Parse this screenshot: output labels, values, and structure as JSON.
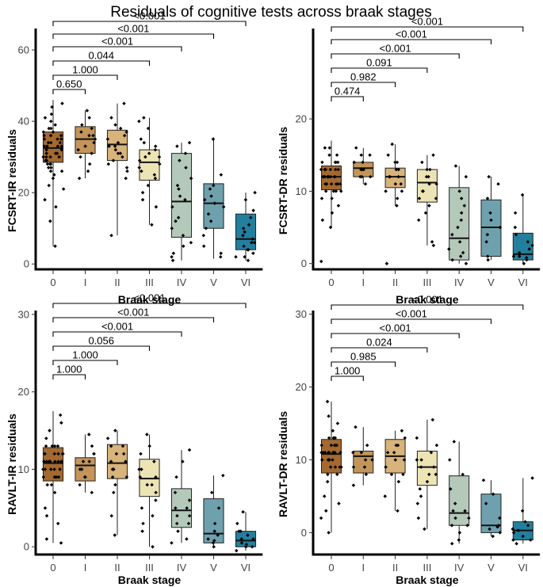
{
  "title": "Residuals of cognitive tests across braak stages",
  "colors": {
    "stage_fills": [
      "#a4692f",
      "#c3955a",
      "#d8b37a",
      "#ede4b5",
      "#b4c9ba",
      "#6ea1ad",
      "#237f9e"
    ],
    "point": "#000000",
    "axis": "#000000"
  },
  "chart_data": [
    {
      "type": "box",
      "id": "fcsrt-ir",
      "ylabel": "FCSRT-IR residuals",
      "xlabel": "Braak stage",
      "categories": [
        "0",
        "I",
        "II",
        "III",
        "IV",
        "V",
        "VI"
      ],
      "yticks": [
        0,
        20,
        40,
        60
      ],
      "ylim": [
        -1.5,
        66
      ],
      "boxes": [
        {
          "min": 5,
          "q1": 28.5,
          "median": 32.5,
          "q3": 37,
          "max": 46
        },
        {
          "min": 24,
          "q1": 31,
          "median": 35,
          "q3": 38.5,
          "max": 43
        },
        {
          "min": 8,
          "q1": 29,
          "median": 33.5,
          "q3": 37.5,
          "max": 45
        },
        {
          "min": 11,
          "q1": 23.5,
          "median": 28.5,
          "q3": 32,
          "max": 41
        },
        {
          "min": 1,
          "q1": 7.5,
          "median": 17.5,
          "q3": 31,
          "max": 34
        },
        {
          "min": 1.5,
          "q1": 10,
          "median": 17,
          "q3": 22.5,
          "max": 35.5
        },
        {
          "min": 1,
          "q1": 4,
          "median": 7,
          "q3": 14,
          "max": 20
        }
      ],
      "comparisons": [
        {
          "group": "I",
          "p": "0.650"
        },
        {
          "group": "II",
          "p": "1.000"
        },
        {
          "group": "III",
          "p": "0.044"
        },
        {
          "group": "IV",
          "p": "<0.001"
        },
        {
          "group": "V",
          "p": "<0.001"
        },
        {
          "group": "VI",
          "p": "<0.001"
        }
      ],
      "points": [
        [
          35,
          26,
          36,
          40,
          33,
          29,
          30,
          37,
          31,
          28,
          41,
          45,
          34,
          32,
          24,
          27,
          18,
          33,
          38,
          22,
          30,
          36,
          29,
          34,
          42,
          31,
          25,
          28,
          35,
          39,
          33,
          30,
          27,
          37,
          21,
          12,
          16,
          5,
          32,
          34,
          28,
          44,
          36,
          30,
          38,
          26,
          33,
          29,
          31,
          35
        ],
        [
          24,
          28,
          31,
          34,
          36,
          38,
          41,
          43,
          33,
          35,
          30,
          37,
          32,
          39,
          26,
          36
        ],
        [
          8,
          24,
          27,
          29,
          31,
          33,
          35,
          37,
          39,
          45,
          34,
          32,
          28,
          30,
          36,
          41,
          26,
          33,
          38,
          31
        ],
        [
          11,
          16,
          20,
          24,
          26,
          28,
          29,
          30,
          31,
          32,
          33,
          35,
          38,
          40,
          41,
          22,
          27,
          30,
          18,
          34,
          25
        ],
        [
          1,
          3,
          6,
          8,
          10,
          13,
          16,
          19,
          21,
          24,
          27,
          29,
          31,
          33,
          34,
          18,
          5,
          12,
          22,
          2
        ],
        [
          2,
          5,
          8,
          10,
          14,
          16,
          17,
          19,
          21,
          22,
          25,
          35,
          12,
          18,
          3
        ],
        [
          1,
          2,
          3,
          4,
          5,
          6,
          7,
          8,
          9,
          11,
          13,
          15,
          18,
          20,
          4,
          6,
          10,
          2
        ]
      ]
    },
    {
      "type": "box",
      "id": "fcsrt-dr",
      "ylabel": "FCSRT-DR residuals",
      "xlabel": "Braak stage",
      "categories": [
        "0",
        "I",
        "II",
        "III",
        "IV",
        "V",
        "VI"
      ],
      "yticks": [
        0,
        10,
        20
      ],
      "ylim": [
        -0.8,
        32.5
      ],
      "boxes": [
        {
          "min": 5,
          "q1": 10.2,
          "median": 12,
          "q3": 13.5,
          "max": 17
        },
        {
          "min": 11,
          "q1": 12,
          "median": 13.2,
          "q3": 14,
          "max": 16
        },
        {
          "min": 8,
          "q1": 10.5,
          "median": 12,
          "q3": 13.2,
          "max": 16.5
        },
        {
          "min": 2.5,
          "q1": 8.5,
          "median": 11.2,
          "q3": 13,
          "max": 15
        },
        {
          "min": 0,
          "q1": 0.5,
          "median": 3.5,
          "q3": 10.5,
          "max": 13.5
        },
        {
          "min": 0.5,
          "q1": 1,
          "median": 5,
          "q3": 8.8,
          "max": 12
        },
        {
          "min": 0,
          "q1": 0.5,
          "median": 1.3,
          "q3": 4.2,
          "max": 9.5
        }
      ],
      "comparisons": [
        {
          "group": "I",
          "p": "0.474"
        },
        {
          "group": "II",
          "p": "0.982"
        },
        {
          "group": "III",
          "p": "0.091"
        },
        {
          "group": "IV",
          "p": "<0.001"
        },
        {
          "group": "V",
          "p": "<0.001"
        },
        {
          "group": "VI",
          "p": "<0.001"
        }
      ],
      "points": [
        [
          12,
          13,
          11,
          14,
          10,
          12,
          15,
          13,
          9,
          12,
          11,
          16,
          13,
          10,
          12,
          14,
          8,
          11,
          13,
          12,
          6,
          7,
          5,
          0.3,
          12,
          14,
          11,
          13,
          15,
          10,
          12,
          9,
          14,
          11,
          13,
          12,
          16,
          10,
          12,
          11
        ],
        [
          11,
          12,
          13,
          14,
          15,
          16,
          13,
          12,
          14,
          13,
          12,
          15
        ],
        [
          0,
          8,
          9,
          10,
          11,
          12,
          13,
          14,
          15,
          16.5,
          12,
          11,
          13,
          10,
          14,
          12
        ],
        [
          2.5,
          3,
          6,
          8,
          9,
          10,
          11,
          12,
          13,
          14,
          15,
          12,
          11,
          10,
          13,
          9,
          7
        ],
        [
          0,
          0.5,
          1,
          2,
          3,
          4,
          5,
          7,
          9,
          10,
          12,
          13.5,
          1.5,
          6,
          8
        ],
        [
          0.5,
          1,
          3,
          5,
          7,
          9,
          11,
          12,
          4,
          6
        ],
        [
          0,
          0.5,
          1,
          1.5,
          2,
          3,
          4,
          5,
          7,
          9.5,
          1,
          2.5,
          0.8
        ]
      ]
    },
    {
      "type": "box",
      "id": "ravlt-ir",
      "ylabel": "RAVLT-IR residuals",
      "xlabel": "Braak stage",
      "categories": [
        "0",
        "I",
        "II",
        "III",
        "IV",
        "V",
        "VI"
      ],
      "yticks": [
        0,
        10,
        20,
        30
      ],
      "ylim": [
        -1,
        30.5
      ],
      "boxes": [
        {
          "min": 0.5,
          "q1": 8.5,
          "median": 10.8,
          "q3": 12.8,
          "max": 17.5
        },
        {
          "min": 7,
          "q1": 8.5,
          "median": 10.5,
          "q3": 11.5,
          "max": 14.5
        },
        {
          "min": 1.5,
          "q1": 8.8,
          "median": 10.8,
          "q3": 13.2,
          "max": 15
        },
        {
          "min": 0,
          "q1": 6.5,
          "median": 8.8,
          "q3": 11.3,
          "max": 14.5
        },
        {
          "min": 0.5,
          "q1": 2.5,
          "median": 4.7,
          "q3": 7.5,
          "max": 12.5
        },
        {
          "min": 0,
          "q1": 0.5,
          "median": 1.7,
          "q3": 6.2,
          "max": 9.2
        },
        {
          "min": -0.5,
          "q1": 0,
          "median": 0.8,
          "q3": 2,
          "max": 4.5
        }
      ],
      "comparisons": [
        {
          "group": "I",
          "p": "1.000"
        },
        {
          "group": "II",
          "p": "1.000"
        },
        {
          "group": "III",
          "p": "0.056"
        },
        {
          "group": "IV",
          "p": "<0.001"
        },
        {
          "group": "V",
          "p": "<0.001"
        },
        {
          "group": "VI",
          "p": "<0.001"
        }
      ],
      "points": [
        [
          11,
          12,
          10,
          13,
          9,
          11,
          14,
          12,
          8,
          10,
          11,
          16,
          12,
          9,
          11,
          13,
          7,
          10,
          12,
          11,
          5,
          4,
          3,
          1,
          0.5,
          11,
          13,
          10,
          12,
          15,
          9,
          11,
          8,
          13,
          10,
          12,
          11,
          17,
          9,
          11
        ],
        [
          7,
          8,
          9,
          10,
          11,
          12,
          13,
          14.5,
          10,
          11,
          9,
          12
        ],
        [
          1.5,
          4,
          7,
          9,
          10,
          11,
          12,
          13,
          14,
          15,
          10,
          11,
          12,
          9,
          13,
          8
        ],
        [
          0,
          2,
          4,
          6,
          7,
          8,
          9,
          10,
          11,
          12,
          13,
          14.5,
          9,
          8,
          10,
          5,
          3
        ],
        [
          0.5,
          1,
          2,
          3,
          4,
          5,
          6,
          7,
          9,
          11,
          12.5,
          4,
          3,
          5
        ],
        [
          0,
          0.5,
          1,
          2,
          3,
          5,
          7,
          9.2,
          1.5,
          0.8
        ],
        [
          -0.5,
          0,
          0.5,
          1,
          1.5,
          2,
          3,
          4.5,
          0.3,
          1,
          2,
          0
        ]
      ]
    },
    {
      "type": "box",
      "id": "ravlt-dr",
      "ylabel": "RAVLT-DR residuals",
      "xlabel": "Braak stage",
      "categories": [
        "0",
        "I",
        "II",
        "III",
        "IV",
        "V",
        "VI"
      ],
      "yticks": [
        0,
        10,
        20,
        30
      ],
      "ylim": [
        -3,
        30.5
      ],
      "boxes": [
        {
          "min": 0,
          "q1": 8.2,
          "median": 10.8,
          "q3": 12.8,
          "max": 18
        },
        {
          "min": 6.5,
          "q1": 8.2,
          "median": 10.5,
          "q3": 11.2,
          "max": 14.5
        },
        {
          "min": 3,
          "q1": 8.2,
          "median": 10.5,
          "q3": 12.8,
          "max": 14
        },
        {
          "min": 0.5,
          "q1": 6.5,
          "median": 9,
          "q3": 11.2,
          "max": 15.5
        },
        {
          "min": -1.5,
          "q1": 1,
          "median": 2.7,
          "q3": 7.8,
          "max": 12.5
        },
        {
          "min": -0.5,
          "q1": 0,
          "median": 1,
          "q3": 5.3,
          "max": 7.2
        },
        {
          "min": -1.5,
          "q1": -1,
          "median": 0.3,
          "q3": 1.5,
          "max": 7.5
        }
      ],
      "comparisons": [
        {
          "group": "I",
          "p": "1.000"
        },
        {
          "group": "II",
          "p": "0.985"
        },
        {
          "group": "III",
          "p": "0.024"
        },
        {
          "group": "IV",
          "p": "<0.001"
        },
        {
          "group": "V",
          "p": "<0.001"
        },
        {
          "group": "VI",
          "p": "<0.001"
        }
      ],
      "points": [
        [
          11,
          12,
          10,
          13,
          9,
          11,
          14,
          12,
          8,
          10,
          11,
          16,
          12,
          9,
          11,
          13,
          7,
          10,
          12,
          11,
          5,
          4,
          2,
          0,
          11,
          13,
          10,
          12,
          15,
          9,
          11,
          8,
          13,
          10,
          12,
          11,
          18,
          9,
          11,
          3
        ],
        [
          6.5,
          8,
          9,
          10,
          11,
          12,
          14.5,
          10,
          9,
          11
        ],
        [
          3,
          5,
          7,
          8,
          9,
          10,
          11,
          12,
          13,
          14,
          10,
          11,
          8,
          12
        ],
        [
          0.5,
          2,
          4,
          6,
          7,
          8,
          9,
          10,
          11,
          12,
          13,
          15.5,
          9,
          8,
          10,
          5
        ],
        [
          -1.5,
          -1,
          0,
          1,
          2,
          3,
          4,
          6,
          8,
          10,
          12.5,
          2,
          3,
          1
        ],
        [
          -0.5,
          0,
          0.5,
          1,
          2,
          4,
          5.3,
          7.2,
          0.8
        ],
        [
          -1.5,
          -1,
          -0.5,
          0,
          0.5,
          1,
          1.5,
          3,
          7.5,
          0.3,
          -1
        ]
      ]
    }
  ]
}
